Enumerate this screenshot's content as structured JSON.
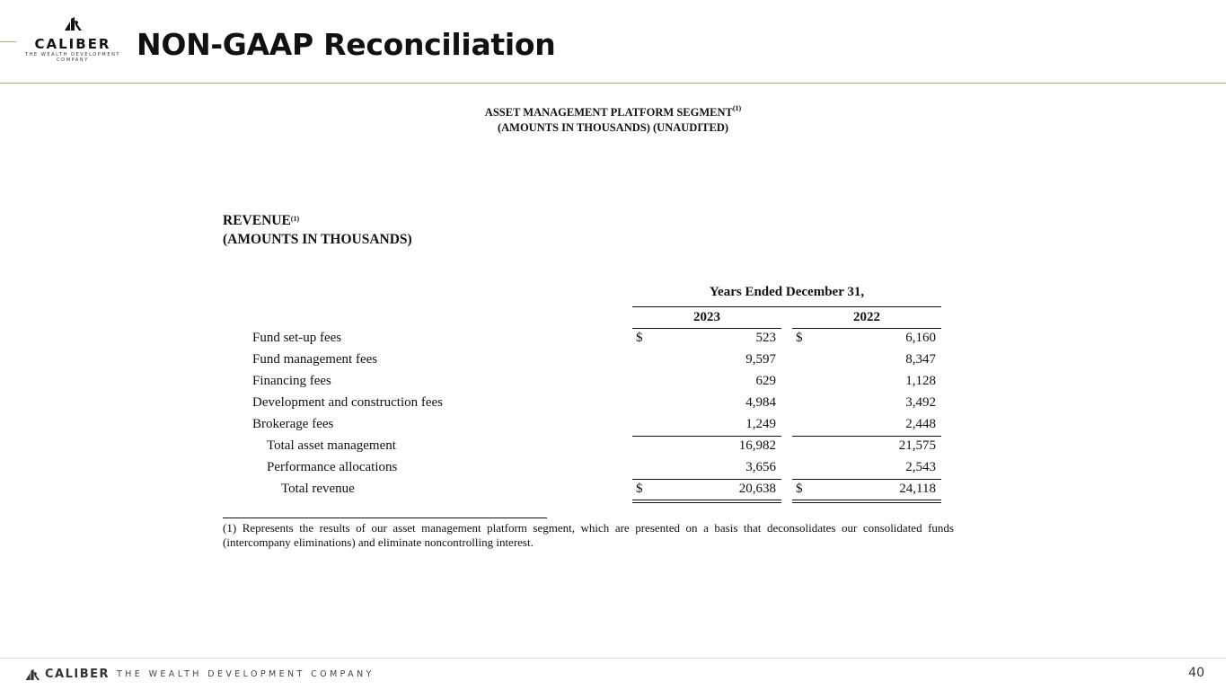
{
  "header": {
    "logo_name": "CALIBER",
    "logo_tagline": "THE WEALTH DEVELOPMENT",
    "logo_tagline2": "COMPANY",
    "title": "NON-GAAP Reconciliation"
  },
  "segment": {
    "line1": "ASSET MANAGEMENT PLATFORM SEGMENT",
    "line1_sup": "(1)",
    "line2": "(AMOUNTS IN THOUSANDS) (UNAUDITED)"
  },
  "revenue": {
    "title": "REVENUE",
    "title_sup": "(1)",
    "subtitle": "(AMOUNTS IN THOUSANDS)"
  },
  "table": {
    "period_header": "Years Ended December 31,",
    "columns": [
      "2023",
      "2022"
    ],
    "rows": [
      {
        "label": "Fund set-up fees",
        "indent": 0,
        "cur1": "$",
        "v2023": "523",
        "cur2": "$",
        "v2022": "6,160"
      },
      {
        "label": "Fund management fees",
        "indent": 0,
        "v2023": "9,597",
        "v2022": "8,347"
      },
      {
        "label": "Financing fees",
        "indent": 0,
        "v2023": "629",
        "v2022": "1,128"
      },
      {
        "label": "Development and construction fees",
        "indent": 0,
        "v2023": "4,984",
        "v2022": "3,492"
      },
      {
        "label": "Brokerage fees",
        "indent": 0,
        "v2023": "1,249",
        "v2022": "2,448"
      },
      {
        "label": "Total asset management",
        "indent": 1,
        "v2023": "16,982",
        "v2022": "21,575"
      },
      {
        "label": "Performance allocations",
        "indent": 1,
        "v2023": "3,656",
        "v2022": "2,543"
      },
      {
        "label": "Total revenue",
        "indent": 2,
        "cur1": "$",
        "v2023": "20,638",
        "cur2": "$",
        "v2022": "24,118"
      }
    ]
  },
  "footnote": "(1) Represents the results of our asset management platform segment, which are presented on a basis that deconsolidates our consolidated funds (intercompany eliminations) and eliminate noncontrolling interest.",
  "footer": {
    "brand": "CALIBER",
    "tagline": "THE WEALTH DEVELOPMENT COMPANY",
    "page_number": "40"
  },
  "colors": {
    "accent": "#b8a58a"
  }
}
